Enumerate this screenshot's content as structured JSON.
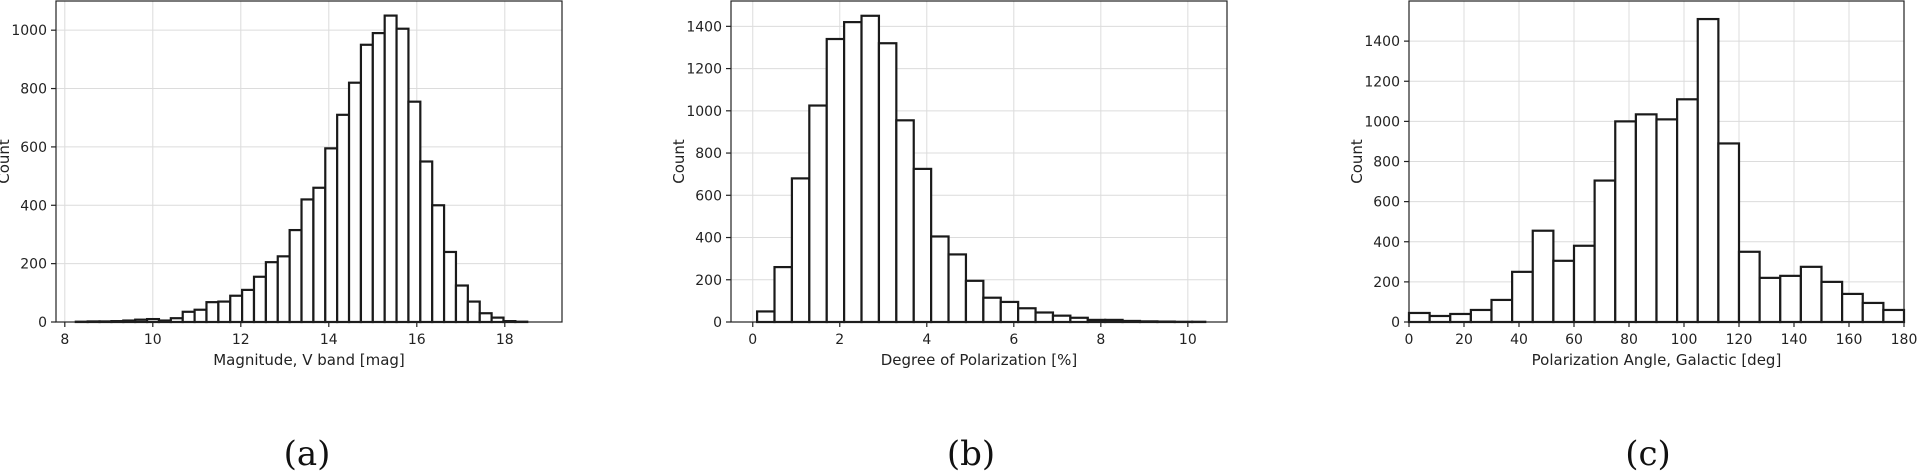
{
  "chart_data": [
    {
      "type": "bar",
      "caption": "(a)",
      "xlabel": "Magnitude, V band [mag]",
      "ylabel": "Count",
      "xlim": [
        7.8,
        19.3
      ],
      "ylim": [
        0,
        1100
      ],
      "xticks": [
        8,
        10,
        12,
        14,
        16,
        18
      ],
      "yticks": [
        0,
        200,
        400,
        600,
        800,
        1000
      ],
      "grid": true,
      "bin_edges": [
        8.25,
        8.52,
        8.79,
        9.06,
        9.33,
        9.6,
        9.87,
        10.14,
        10.41,
        10.68,
        10.95,
        11.22,
        11.49,
        11.76,
        12.03,
        12.3,
        12.57,
        12.84,
        13.11,
        13.38,
        13.65,
        13.92,
        14.19,
        14.46,
        14.73,
        15.0,
        15.27,
        15.54,
        15.81,
        16.08,
        16.35,
        16.62,
        16.89,
        17.16,
        17.43,
        17.7,
        17.97,
        18.24,
        18.51,
        18.78
      ],
      "values": [
        1,
        2,
        2,
        3,
        5,
        8,
        10,
        5,
        13,
        35,
        42,
        68,
        70,
        90,
        110,
        155,
        205,
        225,
        315,
        420,
        460,
        595,
        710,
        820,
        950,
        990,
        1050,
        1005,
        755,
        550,
        400,
        240,
        125,
        70,
        30,
        15,
        3,
        1,
        0
      ]
    },
    {
      "type": "bar",
      "caption": "(b)",
      "xlabel": "Degree of Polarization [%]",
      "ylabel": "Count",
      "xlim": [
        -0.5,
        10.9
      ],
      "ylim": [
        0,
        1520
      ],
      "xticks": [
        0,
        2,
        4,
        6,
        8,
        10
      ],
      "yticks": [
        0,
        200,
        400,
        600,
        800,
        1000,
        1200,
        1400
      ],
      "grid": true,
      "bin_edges": [
        0.1,
        0.5,
        0.9,
        1.3,
        1.7,
        2.1,
        2.5,
        2.9,
        3.3,
        3.7,
        4.1,
        4.5,
        4.9,
        5.3,
        5.7,
        6.1,
        6.5,
        6.9,
        7.3,
        7.7,
        8.1,
        8.5,
        8.9,
        9.3,
        9.7,
        10.1,
        10.4
      ],
      "values": [
        50,
        260,
        680,
        1025,
        1340,
        1420,
        1450,
        1320,
        955,
        725,
        405,
        320,
        195,
        115,
        95,
        65,
        45,
        30,
        20,
        10,
        10,
        5,
        3,
        2,
        1,
        1
      ]
    },
    {
      "type": "bar",
      "caption": "(c)",
      "xlabel": "Polarization Angle, Galactic [deg]",
      "ylabel": "Count",
      "xlim": [
        0,
        180
      ],
      "ylim": [
        0,
        1600
      ],
      "xticks": [
        0,
        20,
        40,
        60,
        80,
        100,
        120,
        140,
        160,
        180
      ],
      "yticks": [
        0,
        200,
        400,
        600,
        800,
        1000,
        1200,
        1400
      ],
      "grid": true,
      "bin_edges": [
        0,
        7.5,
        15,
        22.5,
        30,
        37.5,
        45,
        52.5,
        60,
        67.5,
        75,
        82.5,
        90,
        97.5,
        105,
        112.5,
        120,
        127.5,
        135,
        142.5,
        150,
        157.5,
        165,
        172.5,
        180
      ],
      "values": [
        45,
        30,
        40,
        60,
        110,
        250,
        455,
        305,
        380,
        705,
        1000,
        1035,
        1010,
        1110,
        1510,
        890,
        350,
        220,
        230,
        275,
        200,
        140,
        95,
        60
      ]
    }
  ]
}
